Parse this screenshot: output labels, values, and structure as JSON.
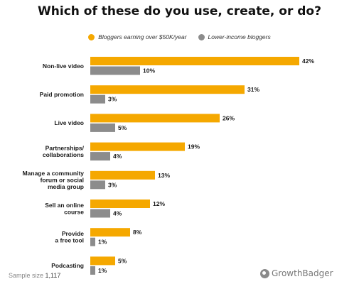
{
  "chart_data": {
    "type": "bar",
    "orientation": "horizontal",
    "title": "Which of these do you use, create, or do?",
    "categories": [
      [
        "Non-live video"
      ],
      [
        "Paid promotion"
      ],
      [
        "Live video"
      ],
      [
        "Partnerships/",
        "collaborations"
      ],
      [
        "Manage a community",
        "forum or social",
        "media group"
      ],
      [
        "Sell an online",
        "course"
      ],
      [
        "Provide",
        "a free tool"
      ],
      [
        "Podcasting"
      ]
    ],
    "series": [
      {
        "name": "Bloggers earning over $50K/year",
        "color": "#f5a800",
        "values": [
          42,
          31,
          26,
          19,
          13,
          12,
          8,
          5
        ]
      },
      {
        "name": "Lower-income bloggers",
        "color": "#8c8c8c",
        "values": [
          10,
          3,
          5,
          4,
          3,
          4,
          1,
          1
        ]
      }
    ],
    "value_suffix": "%",
    "xlim": [
      0,
      42
    ],
    "grid": false,
    "legend_position": "top"
  },
  "footer": {
    "sample_label": "Sample size",
    "sample_value": "1,117",
    "brand": "GrowthBadger",
    "brand_icon": "growthbadger-logo-icon"
  }
}
